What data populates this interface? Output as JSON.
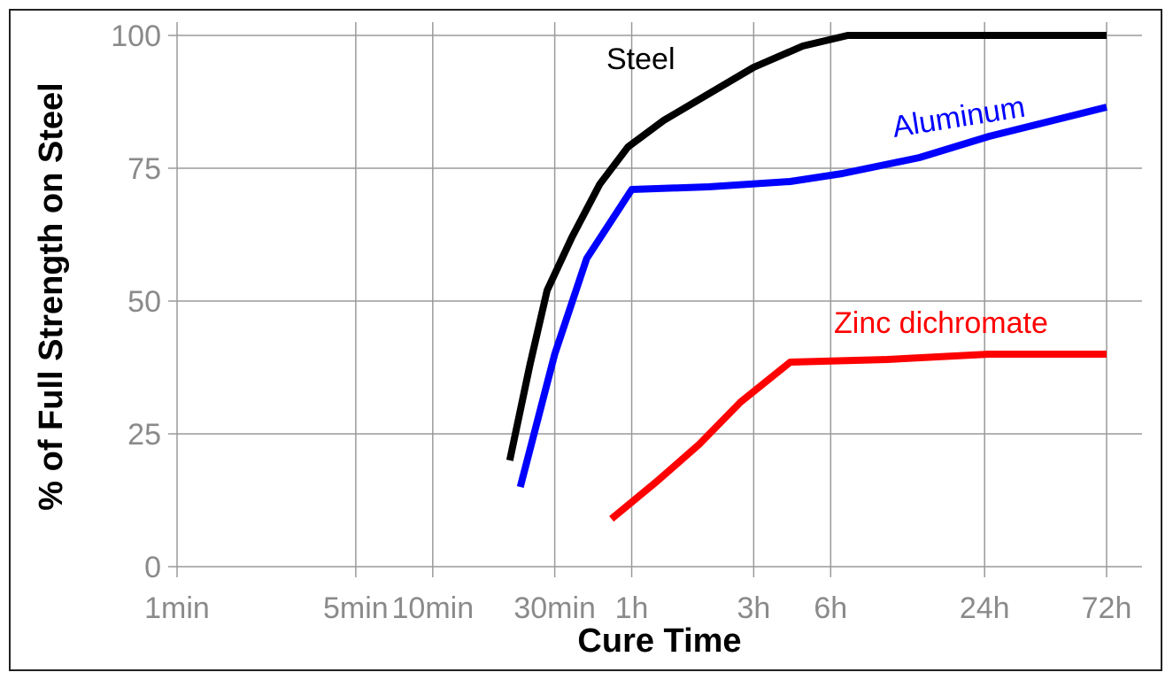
{
  "chart_data": {
    "type": "line",
    "xlabel": "Cure Time",
    "ylabel": "% of Full Strength on Steel",
    "x_scale": "log",
    "x_unit": "minutes",
    "x_ticks": [
      {
        "label": "1min",
        "value": 1
      },
      {
        "label": "5min",
        "value": 5
      },
      {
        "label": "10min",
        "value": 10
      },
      {
        "label": "30min",
        "value": 30
      },
      {
        "label": "1h",
        "value": 60
      },
      {
        "label": "3h",
        "value": 180
      },
      {
        "label": "6h",
        "value": 360
      },
      {
        "label": "24h",
        "value": 1440
      },
      {
        "label": "72h",
        "value": 4320
      }
    ],
    "y_ticks": [
      0,
      25,
      50,
      75,
      100
    ],
    "ylim": [
      0,
      100
    ],
    "grid": true,
    "series": [
      {
        "name": "Steel",
        "color": "#000000",
        "x": [
          20,
          24,
          28,
          35,
          45,
          58,
          80,
          120,
          180,
          280,
          420,
          4320
        ],
        "y": [
          20,
          38,
          52,
          62,
          72,
          79,
          84,
          89,
          94,
          98,
          100,
          100
        ]
      },
      {
        "name": "Aluminum",
        "color": "#0000ff",
        "x": [
          22,
          30,
          40,
          60,
          120,
          250,
          400,
          800,
          1500,
          4320
        ],
        "y": [
          15,
          40,
          58,
          71,
          71.5,
          72.5,
          74,
          77,
          81,
          86.5
        ]
      },
      {
        "name": "Zinc dichromate",
        "color": "#ff0000",
        "x": [
          50,
          75,
          110,
          160,
          250,
          600,
          1500,
          4320
        ],
        "y": [
          9,
          16,
          23,
          31,
          38.5,
          39,
          40,
          40
        ]
      }
    ]
  }
}
